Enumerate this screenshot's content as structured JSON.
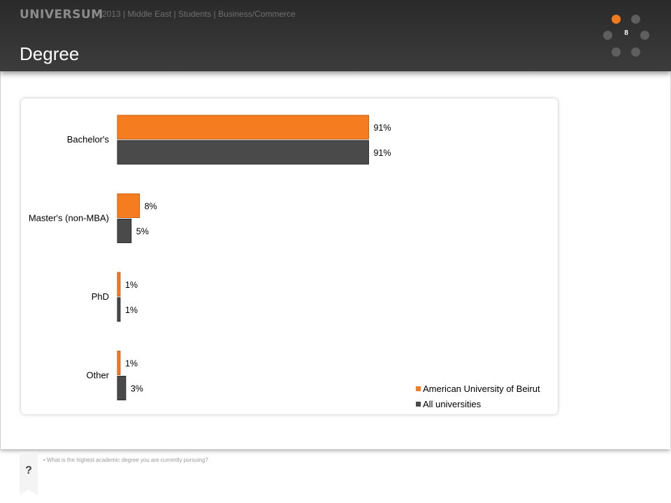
{
  "header": {
    "brand": "UNIVERSUM",
    "subtitle": "2013 | Middle East | Students | Business/Commerce",
    "title": "Degree",
    "page_number": "8"
  },
  "footnote": "What is the highest academic degree you are currently pursuing?",
  "help": {
    "label": "?"
  },
  "colors": {
    "accent": "#f07a1f",
    "series1": "#f57c1f",
    "series2": "#4a4a4a"
  },
  "chart_data": {
    "type": "bar",
    "orientation": "horizontal",
    "categories": [
      "Bachelor's",
      "Master's (non-MBA)",
      "PhD",
      "Other"
    ],
    "series": [
      {
        "name": "American University of Beirut",
        "values": [
          91,
          8,
          1,
          1
        ],
        "labels": [
          "91%",
          "8%",
          "1%",
          "1%"
        ]
      },
      {
        "name": "All universities",
        "values": [
          91,
          5,
          1,
          3
        ],
        "labels": [
          "91%",
          "5%",
          "1%",
          "3%"
        ]
      }
    ],
    "unit": "%",
    "xlim": [
      0,
      100
    ],
    "grid": false,
    "legend_position": "bottom-right"
  }
}
